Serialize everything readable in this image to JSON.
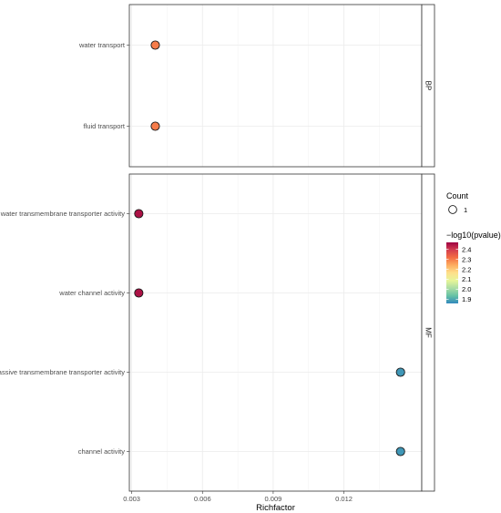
{
  "chart_data": {
    "type": "scatter",
    "xlabel": "Richfactor",
    "xlim": [
      0.0029,
      0.0153
    ],
    "x_ticks": [
      0.003,
      0.006,
      0.009,
      0.012
    ],
    "x_tick_labels": [
      "0.003",
      "0.006",
      "0.009",
      "0.012"
    ],
    "grid": true,
    "facets": [
      {
        "label": "BP",
        "categories": [
          "water transport",
          "fluid transport"
        ],
        "points": [
          {
            "term": "water transport",
            "x": 0.004,
            "count": 1,
            "neg_log10_pvalue": 2.3
          },
          {
            "term": "fluid transport",
            "x": 0.004,
            "count": 1,
            "neg_log10_pvalue": 2.3
          }
        ]
      },
      {
        "label": "MF",
        "categories": [
          "water transmembrane transporter activity",
          "water channel activity",
          "passive transmembrane transporter activity",
          "channel activity"
        ],
        "points": [
          {
            "term": "water transmembrane transporter activity",
            "x": 0.0033,
            "count": 1,
            "neg_log10_pvalue": 2.45
          },
          {
            "term": "water channel activity",
            "x": 0.0033,
            "count": 1,
            "neg_log10_pvalue": 2.45
          },
          {
            "term": "passive transmembrane transporter activity",
            "x": 0.0144,
            "count": 1,
            "neg_log10_pvalue": 1.88
          },
          {
            "term": "channel activity",
            "x": 0.0144,
            "count": 1,
            "neg_log10_pvalue": 1.88
          }
        ]
      }
    ],
    "legend": {
      "placement": "right",
      "size_title": "Count",
      "size_values": [
        "1"
      ],
      "color_title": "−log10(pvalue)",
      "color_ticks": [
        2.4,
        2.3,
        2.2,
        2.1,
        2.0,
        1.9
      ],
      "color_tick_labels": [
        "2.4",
        "2.3",
        "2.2",
        "2.1",
        "2.0",
        "1.9"
      ],
      "color_range": [
        1.86,
        2.47
      ],
      "colors": [
        "#3288bd",
        "#66c2a5",
        "#abdda4",
        "#e6f598",
        "#fee08b",
        "#fdae61",
        "#f46d43",
        "#d53e4f",
        "#9e0142"
      ]
    }
  }
}
